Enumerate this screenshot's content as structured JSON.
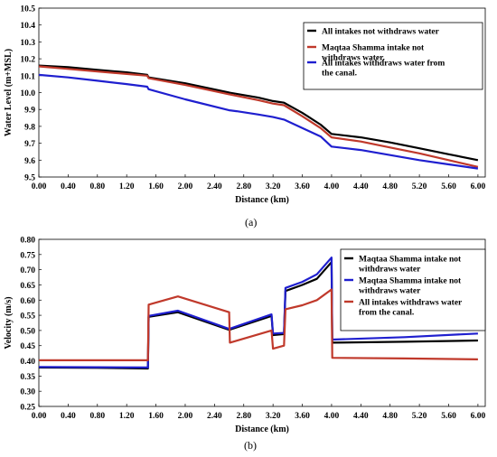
{
  "captions": [
    "(a)",
    "(b)"
  ],
  "chart_data": [
    {
      "type": "line",
      "xlabel": "Distance (km)",
      "ylabel": "Water Level (m+MSL)",
      "xlim": [
        0,
        6.1
      ],
      "ylim": [
        9.5,
        10.5
      ],
      "x_ticks": [
        "0.00",
        "0.40",
        "0.80",
        "1.20",
        "1.60",
        "2.00",
        "2.40",
        "2.80",
        "3.20",
        "3.60",
        "4.00",
        "4.40",
        "4.80",
        "5.20",
        "5.60",
        "6.00"
      ],
      "y_ticks": [
        "9.5",
        "9.6",
        "9.7",
        "9.8",
        "9.9",
        "10.0",
        "10.1",
        "10.2",
        "10.3",
        "10.4",
        "10.5"
      ],
      "legend_position": "top-right",
      "grid": false,
      "series": [
        {
          "name": "All intakes not withdraws water",
          "color": "#000000",
          "points": [
            [
              0,
              10.16
            ],
            [
              0.4,
              10.15
            ],
            [
              0.8,
              10.135
            ],
            [
              1.2,
              10.12
            ],
            [
              1.48,
              10.105
            ],
            [
              1.5,
              10.09
            ],
            [
              2.0,
              10.055
            ],
            [
              2.6,
              10.0
            ],
            [
              3.0,
              9.97
            ],
            [
              3.2,
              9.95
            ],
            [
              3.35,
              9.94
            ],
            [
              3.6,
              9.88
            ],
            [
              3.85,
              9.81
            ],
            [
              4.0,
              9.755
            ],
            [
              4.4,
              9.735
            ],
            [
              4.8,
              9.705
            ],
            [
              5.2,
              9.67
            ],
            [
              5.6,
              9.635
            ],
            [
              6.0,
              9.6
            ]
          ]
        },
        {
          "name": "Maqtaa Shamma intake not withdraws water.",
          "color": "#c0392b",
          "points": [
            [
              0,
              10.155
            ],
            [
              0.4,
              10.14
            ],
            [
              0.8,
              10.125
            ],
            [
              1.2,
              10.11
            ],
            [
              1.48,
              10.1
            ],
            [
              1.5,
              10.085
            ],
            [
              2.0,
              10.045
            ],
            [
              2.6,
              9.99
            ],
            [
              3.0,
              9.955
            ],
            [
              3.2,
              9.935
            ],
            [
              3.35,
              9.925
            ],
            [
              3.6,
              9.86
            ],
            [
              3.85,
              9.79
            ],
            [
              4.0,
              9.735
            ],
            [
              4.4,
              9.71
            ],
            [
              4.8,
              9.675
            ],
            [
              5.2,
              9.64
            ],
            [
              5.6,
              9.6
            ],
            [
              6.0,
              9.56
            ]
          ]
        },
        {
          "name": "All intakes withdraws water from the canal.",
          "color": "#1f1fcf",
          "points": [
            [
              0,
              10.105
            ],
            [
              0.4,
              10.09
            ],
            [
              0.8,
              10.07
            ],
            [
              1.2,
              10.05
            ],
            [
              1.48,
              10.035
            ],
            [
              1.5,
              10.02
            ],
            [
              2.0,
              9.96
            ],
            [
              2.6,
              9.895
            ],
            [
              2.7,
              9.89
            ],
            [
              3.0,
              9.87
            ],
            [
              3.2,
              9.855
            ],
            [
              3.35,
              9.84
            ],
            [
              3.6,
              9.79
            ],
            [
              3.85,
              9.74
            ],
            [
              4.0,
              9.68
            ],
            [
              4.4,
              9.66
            ],
            [
              4.8,
              9.63
            ],
            [
              5.2,
              9.6
            ],
            [
              5.6,
              9.575
            ],
            [
              6.0,
              9.55
            ]
          ]
        }
      ]
    },
    {
      "type": "line",
      "xlabel": "Distance (km)",
      "ylabel": "Velocity (m/s)",
      "xlim": [
        0,
        6.1
      ],
      "ylim": [
        0.25,
        0.8
      ],
      "x_ticks": [
        "0.00",
        "0.40",
        "0.80",
        "1.20",
        "1.60",
        "2.00",
        "2.40",
        "2.80",
        "3.20",
        "3.60",
        "4.00",
        "4.40",
        "4.80",
        "5.20",
        "5.60",
        "6.00"
      ],
      "y_ticks": [
        "0.25",
        "0.30",
        "0.35",
        "0.40",
        "0.45",
        "0.50",
        "0.55",
        "0.60",
        "0.65",
        "0.70",
        "0.75",
        "0.80"
      ],
      "legend_position": "top-right",
      "grid": false,
      "series": [
        {
          "name": "Maqtaa Shamma intake not withdraws water",
          "color": "#000000",
          "points": [
            [
              0,
              0.378
            ],
            [
              0.8,
              0.377
            ],
            [
              1.49,
              0.375
            ],
            [
              1.5,
              0.545
            ],
            [
              1.9,
              0.56
            ],
            [
              2.6,
              0.502
            ],
            [
              3.18,
              0.548
            ],
            [
              3.2,
              0.485
            ],
            [
              3.35,
              0.488
            ],
            [
              3.37,
              0.63
            ],
            [
              3.6,
              0.65
            ],
            [
              3.8,
              0.67
            ],
            [
              4.0,
              0.725
            ],
            [
              4.01,
              0.46
            ],
            [
              5.0,
              0.463
            ],
            [
              6.0,
              0.467
            ]
          ]
        },
        {
          "name": "Maqtaa Shamma intake not withdraws water",
          "color": "#1f1fcf",
          "points": [
            [
              0,
              0.38
            ],
            [
              0.8,
              0.379
            ],
            [
              1.49,
              0.378
            ],
            [
              1.5,
              0.548
            ],
            [
              1.9,
              0.565
            ],
            [
              2.6,
              0.505
            ],
            [
              3.18,
              0.553
            ],
            [
              3.2,
              0.49
            ],
            [
              3.35,
              0.492
            ],
            [
              3.37,
              0.64
            ],
            [
              3.6,
              0.66
            ],
            [
              3.8,
              0.685
            ],
            [
              4.0,
              0.74
            ],
            [
              4.01,
              0.47
            ],
            [
              5.0,
              0.478
            ],
            [
              6.0,
              0.49
            ]
          ]
        },
        {
          "name": "All intakes withdraws water from the canal.",
          "color": "#c0392b",
          "points": [
            [
              0,
              0.402
            ],
            [
              0.8,
              0.402
            ],
            [
              1.49,
              0.402
            ],
            [
              1.5,
              0.585
            ],
            [
              1.9,
              0.612
            ],
            [
              2.6,
              0.56
            ],
            [
              2.61,
              0.46
            ],
            [
              3.18,
              0.5
            ],
            [
              3.2,
              0.44
            ],
            [
              3.35,
              0.45
            ],
            [
              3.37,
              0.57
            ],
            [
              3.6,
              0.583
            ],
            [
              3.8,
              0.6
            ],
            [
              4.0,
              0.635
            ],
            [
              4.01,
              0.41
            ],
            [
              5.0,
              0.408
            ],
            [
              6.0,
              0.405
            ]
          ]
        }
      ]
    }
  ]
}
